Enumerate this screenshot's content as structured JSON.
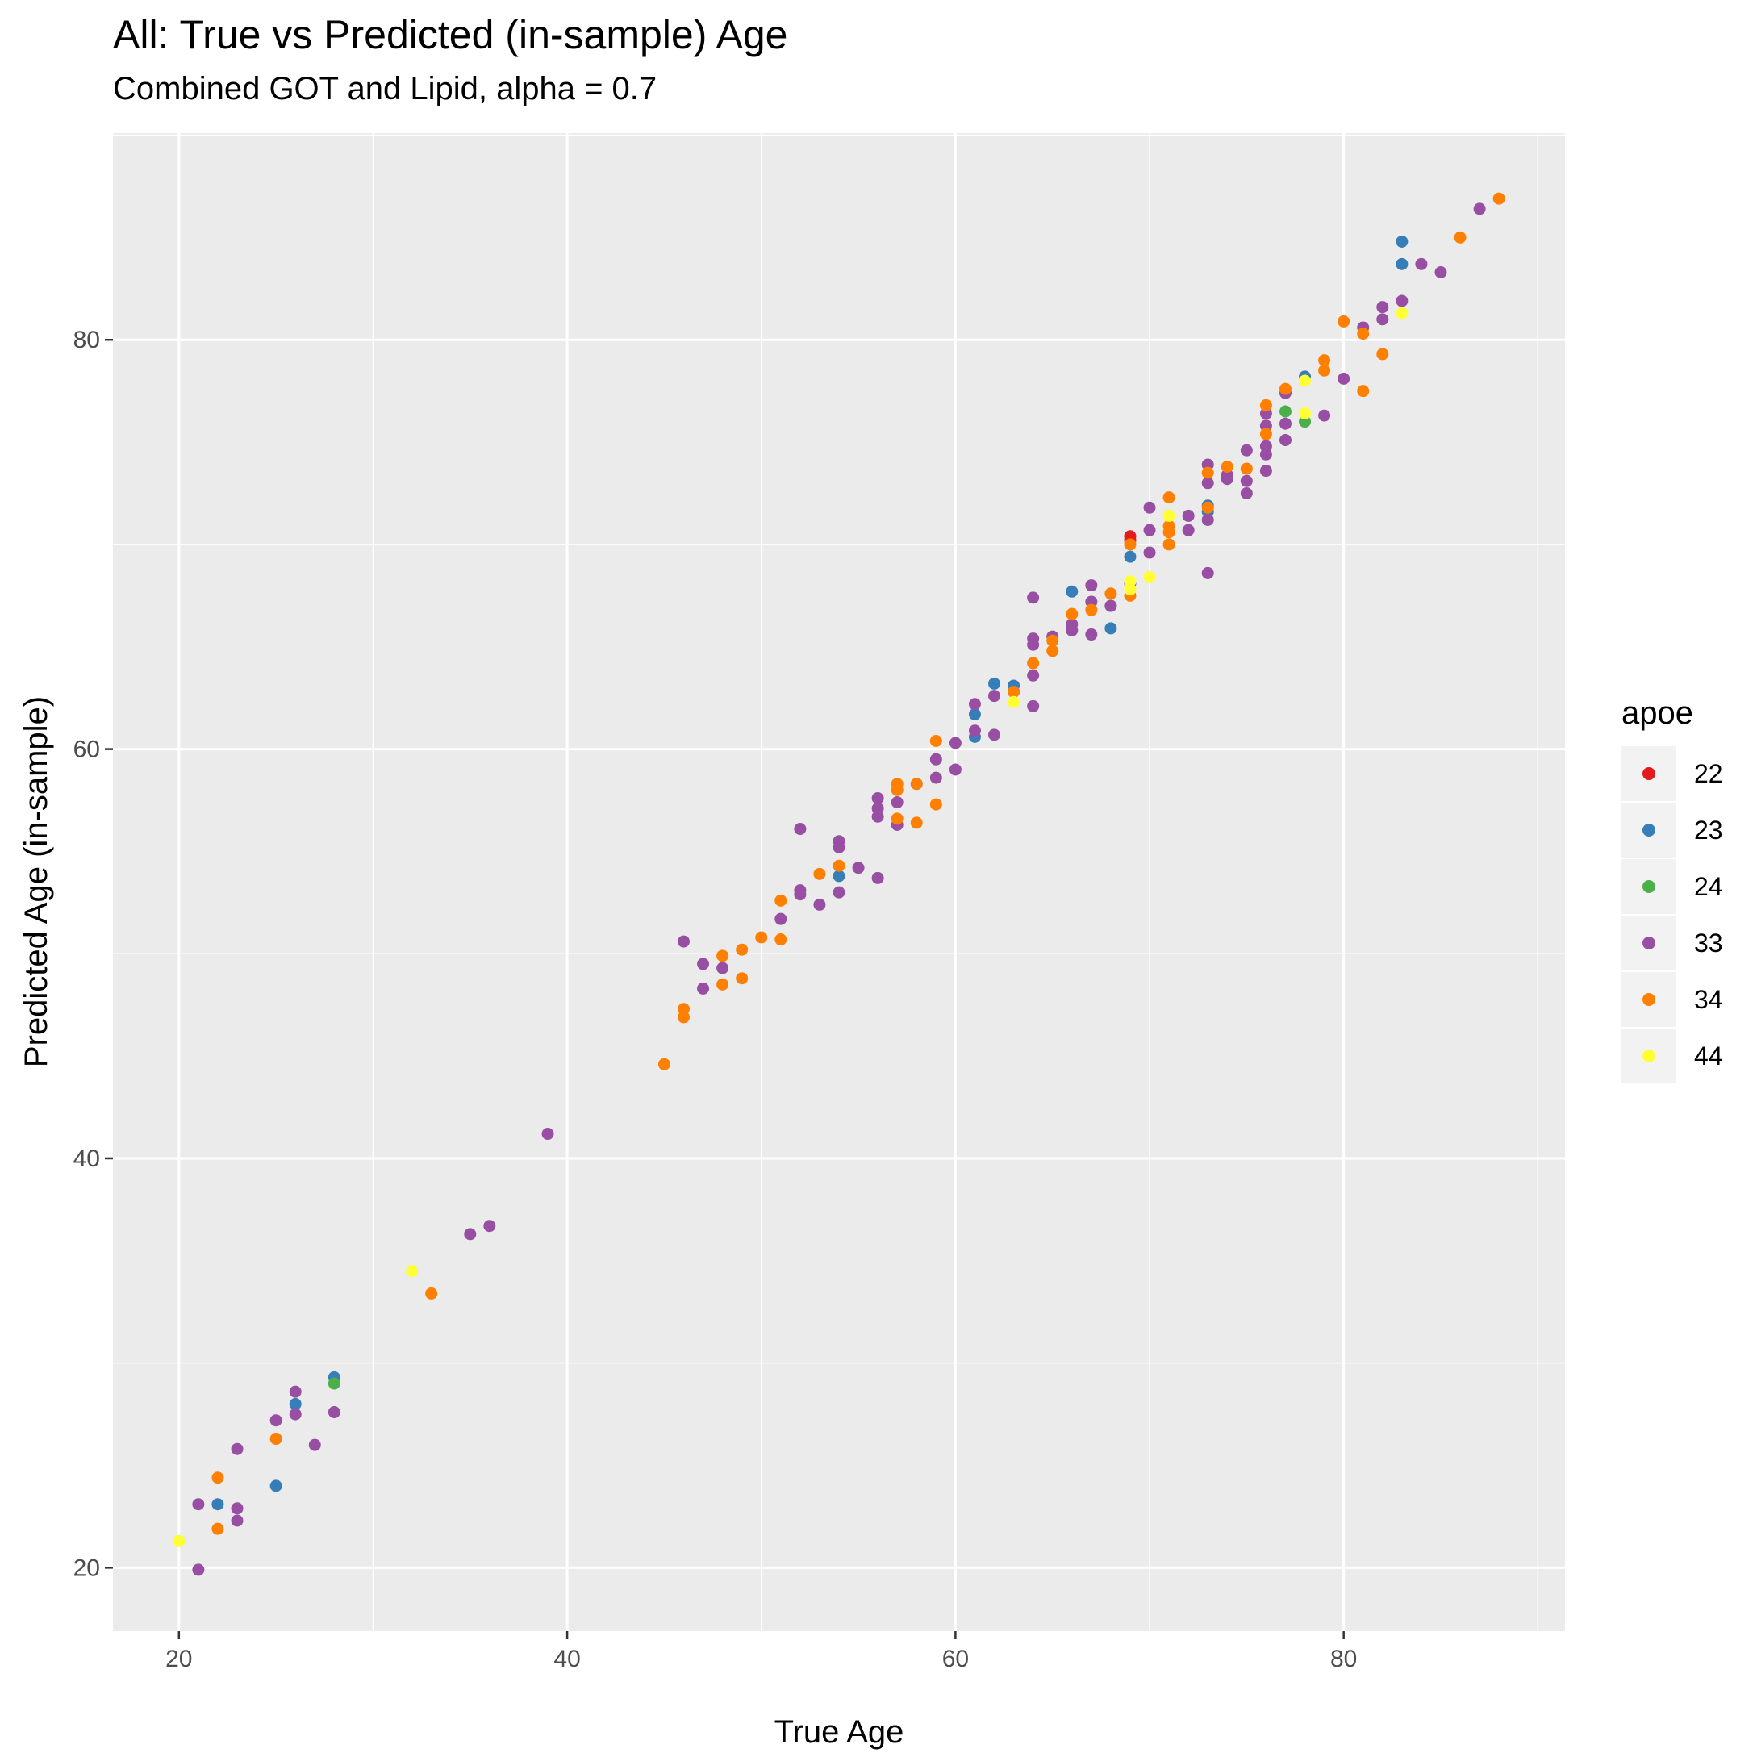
{
  "chart_data": {
    "type": "scatter",
    "title": "All: True vs Predicted (in-sample) Age",
    "subtitle": "Combined GOT and Lipid, alpha = 0.7",
    "xlabel": "True Age",
    "ylabel": "Predicted Age (in-sample)",
    "xlim": [
      16.6,
      91.4
    ],
    "ylim": [
      16.9,
      90.1
    ],
    "x_ticks": [
      20,
      40,
      60,
      80
    ],
    "y_ticks": [
      20,
      40,
      60,
      80
    ],
    "grid": true,
    "legend": {
      "title": "apoe",
      "position": "right"
    },
    "colors": {
      "22": "#E41A1C",
      "23": "#377EB8",
      "24": "#4DAF4A",
      "33": "#984EA3",
      "34": "#FF7F00",
      "44": "#FFFF33"
    },
    "series": [
      {
        "name": "22",
        "points": [
          [
            69,
            70.4
          ],
          [
            69,
            70.2
          ]
        ]
      },
      {
        "name": "23",
        "points": [
          [
            22,
            23.1
          ],
          [
            25,
            24.0
          ],
          [
            26,
            28.0
          ],
          [
            28,
            29.3
          ],
          [
            54,
            53.8
          ],
          [
            61,
            60.6
          ],
          [
            61,
            61.7
          ],
          [
            62,
            63.2
          ],
          [
            63,
            63.1
          ],
          [
            63,
            62.8
          ],
          [
            66,
            67.7
          ],
          [
            68,
            65.9
          ],
          [
            68,
            67.0
          ],
          [
            69,
            69.4
          ],
          [
            73,
            71.6
          ],
          [
            73,
            71.9
          ],
          [
            78,
            78.2
          ],
          [
            83,
            84.8
          ],
          [
            83,
            83.7
          ]
        ]
      },
      {
        "name": "24",
        "points": [
          [
            28,
            29.0
          ],
          [
            77,
            76.5
          ],
          [
            78,
            76.0
          ]
        ]
      },
      {
        "name": "33",
        "points": [
          [
            21,
            23.1
          ],
          [
            21,
            19.9
          ],
          [
            23,
            25.8
          ],
          [
            23,
            22.9
          ],
          [
            23,
            22.3
          ],
          [
            25,
            27.2
          ],
          [
            26,
            28.6
          ],
          [
            26,
            27.5
          ],
          [
            27,
            26.0
          ],
          [
            28,
            27.6
          ],
          [
            35,
            36.3
          ],
          [
            36,
            36.7
          ],
          [
            39,
            41.2
          ],
          [
            46,
            50.6
          ],
          [
            47,
            49.5
          ],
          [
            47,
            48.3
          ],
          [
            48,
            49.3
          ],
          [
            51,
            51.7
          ],
          [
            52,
            56.1
          ],
          [
            52,
            52.9
          ],
          [
            52,
            53.1
          ],
          [
            53,
            52.4
          ],
          [
            54,
            55.5
          ],
          [
            54,
            55.2
          ],
          [
            54,
            53.0
          ],
          [
            55,
            54.2
          ],
          [
            56,
            57.6
          ],
          [
            56,
            57.1
          ],
          [
            56,
            56.7
          ],
          [
            56,
            53.7
          ],
          [
            57,
            56.3
          ],
          [
            57,
            57.4
          ],
          [
            58,
            58.3
          ],
          [
            59,
            58.6
          ],
          [
            59,
            59.5
          ],
          [
            60,
            60.3
          ],
          [
            60,
            59.0
          ],
          [
            61,
            62.2
          ],
          [
            61,
            60.9
          ],
          [
            62,
            62.6
          ],
          [
            62,
            60.7
          ],
          [
            64,
            67.4
          ],
          [
            64,
            65.4
          ],
          [
            64,
            65.1
          ],
          [
            64,
            63.6
          ],
          [
            64,
            62.1
          ],
          [
            65,
            65.5
          ],
          [
            66,
            65.8
          ],
          [
            66,
            66.1
          ],
          [
            67,
            68.0
          ],
          [
            67,
            67.2
          ],
          [
            67,
            65.6
          ],
          [
            68,
            67.0
          ],
          [
            69,
            68.1
          ],
          [
            70,
            71.8
          ],
          [
            70,
            70.7
          ],
          [
            70,
            69.6
          ],
          [
            72,
            71.4
          ],
          [
            72,
            70.7
          ],
          [
            73,
            73.9
          ],
          [
            73,
            73.0
          ],
          [
            73,
            71.2
          ],
          [
            73,
            68.6
          ],
          [
            74,
            73.4
          ],
          [
            74,
            73.2
          ],
          [
            75,
            74.6
          ],
          [
            75,
            73.1
          ],
          [
            75,
            72.5
          ],
          [
            76,
            76.4
          ],
          [
            76,
            75.8
          ],
          [
            76,
            74.8
          ],
          [
            76,
            74.4
          ],
          [
            76,
            73.6
          ],
          [
            77,
            77.4
          ],
          [
            77,
            75.9
          ],
          [
            77,
            75.1
          ],
          [
            79,
            76.3
          ],
          [
            80,
            78.1
          ],
          [
            81,
            80.6
          ],
          [
            82,
            81.6
          ],
          [
            82,
            81.0
          ],
          [
            83,
            81.9
          ],
          [
            84,
            83.7
          ],
          [
            85,
            83.3
          ],
          [
            87,
            86.4
          ]
        ]
      },
      {
        "name": "34",
        "points": [
          [
            22,
            24.4
          ],
          [
            22,
            21.9
          ],
          [
            25,
            26.3
          ],
          [
            33,
            33.4
          ],
          [
            45,
            44.6
          ],
          [
            46,
            47.3
          ],
          [
            46,
            46.9
          ],
          [
            48,
            49.9
          ],
          [
            48,
            48.5
          ],
          [
            49,
            50.2
          ],
          [
            49,
            48.8
          ],
          [
            50,
            50.8
          ],
          [
            51,
            52.6
          ],
          [
            51,
            50.7
          ],
          [
            53,
            53.9
          ],
          [
            54,
            54.3
          ],
          [
            57,
            58.3
          ],
          [
            57,
            58.0
          ],
          [
            57,
            56.6
          ],
          [
            58,
            58.3
          ],
          [
            58,
            56.4
          ],
          [
            59,
            60.4
          ],
          [
            59,
            57.3
          ],
          [
            63,
            62.8
          ],
          [
            64,
            64.2
          ],
          [
            65,
            65.3
          ],
          [
            65,
            64.8
          ],
          [
            66,
            66.6
          ],
          [
            67,
            66.8
          ],
          [
            68,
            67.6
          ],
          [
            69,
            67.5
          ],
          [
            69,
            70.0
          ],
          [
            71,
            72.3
          ],
          [
            71,
            70.9
          ],
          [
            71,
            70.6
          ],
          [
            71,
            70.0
          ],
          [
            73,
            73.5
          ],
          [
            73,
            71.8
          ],
          [
            74,
            73.8
          ],
          [
            75,
            73.7
          ],
          [
            76,
            76.8
          ],
          [
            76,
            75.4
          ],
          [
            77,
            77.6
          ],
          [
            79,
            79.0
          ],
          [
            79,
            78.5
          ],
          [
            80,
            80.9
          ],
          [
            81,
            80.3
          ],
          [
            81,
            77.5
          ],
          [
            82,
            79.3
          ],
          [
            86,
            85.0
          ],
          [
            88,
            86.9
          ]
        ]
      },
      {
        "name": "44",
        "points": [
          [
            20,
            21.3
          ],
          [
            32,
            34.5
          ],
          [
            63,
            62.3
          ],
          [
            69,
            68.2
          ],
          [
            69,
            67.8
          ],
          [
            70,
            68.4
          ],
          [
            71,
            71.4
          ],
          [
            78,
            78.0
          ],
          [
            78,
            76.4
          ],
          [
            83,
            81.3
          ]
        ]
      }
    ]
  }
}
